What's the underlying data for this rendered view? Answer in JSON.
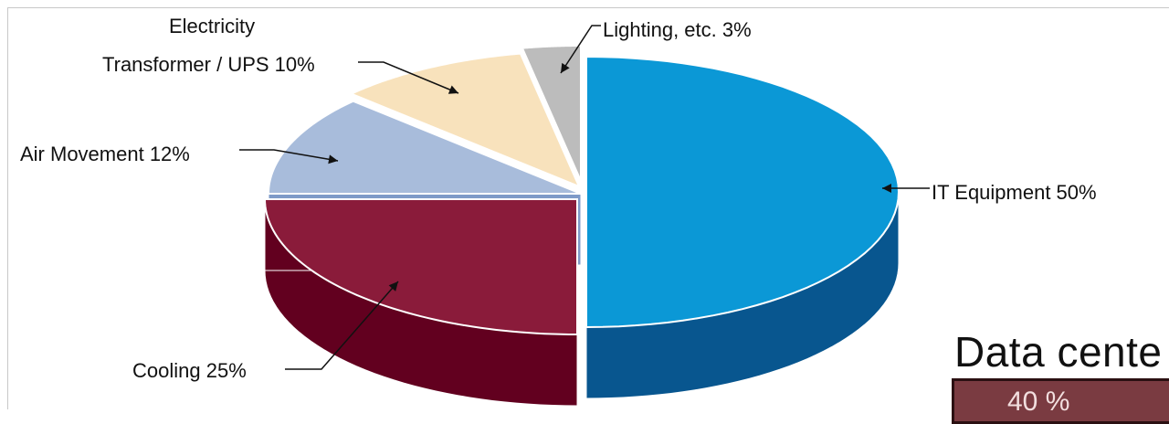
{
  "chart_data": {
    "type": "pie",
    "style": "3d-exploded",
    "slices": [
      {
        "label": "IT Equipment",
        "value": 50,
        "display": "IT Equipment   50%",
        "color": "#0b98d6",
        "side_color": "#08568f"
      },
      {
        "label": "Cooling",
        "value": 25,
        "display": "Cooling  25%",
        "color": "#8a1b3a",
        "side_color": "#62001f"
      },
      {
        "label": "Air Movement",
        "value": 12,
        "display": "Air Movement   12%",
        "color": "#a8bcdb",
        "side_color": "#7e9ac8"
      },
      {
        "label": "Electricity Transformer / UPS",
        "value": 10,
        "display_line1": "Electricity",
        "display_line2": "Transformer / UPS    10%",
        "color": "#f8e2bc",
        "side_color": "#f3cf8e"
      },
      {
        "label": "Lighting, etc.",
        "value": 3,
        "display": "Lighting, etc.    3%",
        "color": "#bcbcbc",
        "side_color": "#7c7c7c"
      }
    ]
  },
  "side_panel": {
    "title": "Data cente",
    "box_text": "40 %",
    "box_color": "#7a3b41"
  }
}
